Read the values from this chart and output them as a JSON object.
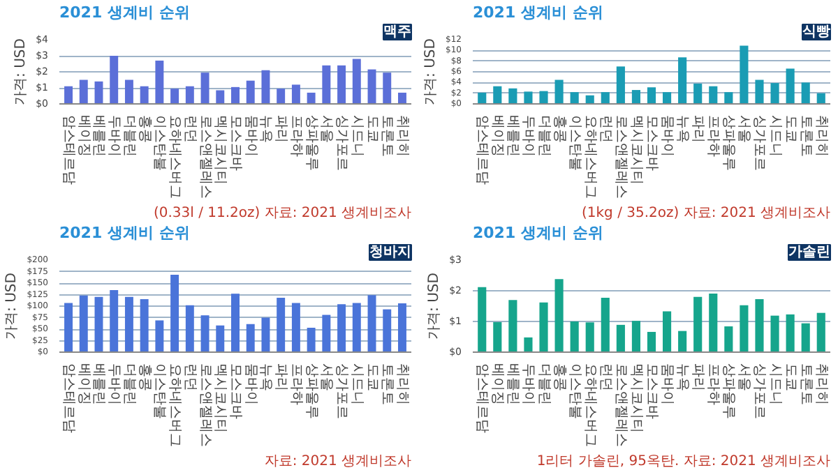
{
  "chart_data": [
    {
      "type": "bar",
      "title": "2021 생계비 순위",
      "subtitle": "맥주",
      "ylabel": "가격: USD",
      "categories": [
        "암스테르담",
        "베이징",
        "베를린",
        "두바이",
        "더블린",
        "홍콩",
        "이스탄불",
        "요하네스버그",
        "런던",
        "로스앤젤레스",
        "멕시코시티",
        "모스크바",
        "뭄바이",
        "뉴욕",
        "파리",
        "프라하",
        "상파울루",
        "서울",
        "싱가포르",
        "시드니",
        "도쿄",
        "토론토",
        "취리히"
      ],
      "values": [
        1.1,
        1.5,
        1.4,
        3.0,
        1.5,
        1.1,
        2.7,
        0.95,
        1.1,
        1.95,
        0.85,
        1.05,
        1.45,
        2.1,
        0.95,
        1.2,
        0.7,
        2.4,
        2.4,
        2.8,
        2.15,
        1.95,
        0.7
      ],
      "color": "#5b6fd8",
      "ylim": [
        0,
        4
      ],
      "yticks": [
        {
          "value": 0,
          "label": "$0"
        },
        {
          "value": 1,
          "label": "$1"
        },
        {
          "value": 2,
          "label": "$2"
        },
        {
          "value": 3,
          "label": "$3"
        },
        {
          "value": 4,
          "label": "$4"
        }
      ],
      "grid": "y",
      "annotations": [
        "(0.33l / 11.2oz) 자료: 2021 생계비조사"
      ]
    },
    {
      "type": "bar",
      "title": "2021 생계비 순위",
      "subtitle": "식빵",
      "ylabel": "가격: USD",
      "categories": [
        "암스테르담",
        "베이징",
        "베를린",
        "두바이",
        "더블린",
        "홍콩",
        "이스탄불",
        "요하네스버그",
        "런던",
        "로스앤젤레스",
        "멕시코시티",
        "모스크바",
        "뭄바이",
        "뉴욕",
        "파리",
        "프라하",
        "상파울루",
        "서울",
        "싱가포르",
        "시드니",
        "도쿄",
        "토론토",
        "취리히"
      ],
      "values": [
        2.1,
        3.3,
        2.9,
        2.3,
        2.4,
        4.5,
        2.2,
        1.6,
        2.2,
        7.0,
        2.6,
        3.1,
        2.2,
        8.7,
        3.8,
        3.3,
        2.2,
        10.9,
        4.5,
        3.9,
        6.6,
        4.0,
        2.0
      ],
      "color": "#1a9cb4",
      "ylim": [
        0,
        12
      ],
      "yticks": [
        {
          "value": 0,
          "label": "$0"
        },
        {
          "value": 2,
          "label": "$2"
        },
        {
          "value": 4,
          "label": "$4"
        },
        {
          "value": 6,
          "label": "$6"
        },
        {
          "value": 8,
          "label": "$8"
        },
        {
          "value": 10,
          "label": "$10"
        },
        {
          "value": 12,
          "label": "$12"
        }
      ],
      "grid": "y",
      "annotations": [
        "(1kg / 35.2oz) 자료: 2021 생계비조사"
      ]
    },
    {
      "type": "bar",
      "title": "2021 생계비 순위",
      "subtitle": "청바지",
      "ylabel": "가격: USD",
      "categories": [
        "암스테르담",
        "베이징",
        "베를린",
        "두바이",
        "더블린",
        "홍콩",
        "이스탄불",
        "요하네스버그",
        "런던",
        "로스앤젤레스",
        "멕시코시티",
        "모스크바",
        "뭄바이",
        "뉴욕",
        "파리",
        "프라하",
        "상파울루",
        "서울",
        "싱가포르",
        "시드니",
        "도쿄",
        "토론토",
        "취리히"
      ],
      "values": [
        107,
        123,
        120,
        135,
        120,
        115,
        69,
        168,
        102,
        80,
        58,
        127,
        61,
        75,
        118,
        107,
        53,
        81,
        104,
        107,
        124,
        93,
        106
      ],
      "color": "#4a74d9",
      "ylim": [
        0,
        200
      ],
      "yticks": [
        {
          "value": 0,
          "label": "$0"
        },
        {
          "value": 25,
          "label": "$25"
        },
        {
          "value": 50,
          "label": "$50"
        },
        {
          "value": 75,
          "label": "$75"
        },
        {
          "value": 100,
          "label": "$100"
        },
        {
          "value": 125,
          "label": "$125"
        },
        {
          "value": 150,
          "label": "$150"
        },
        {
          "value": 175,
          "label": "$175"
        },
        {
          "value": 200,
          "label": "$200"
        }
      ],
      "grid": "y",
      "annotations": [
        "자료: 2021 생계비조사"
      ]
    },
    {
      "type": "bar",
      "title": "2021 생계비 순위",
      "subtitle": "가솔린",
      "ylabel": "가격: USD",
      "categories": [
        "암스테르담",
        "베이징",
        "베를린",
        "두바이",
        "더블린",
        "홍콩",
        "이스탄불",
        "요하네스버그",
        "런던",
        "로스앤젤레스",
        "멕시코시티",
        "모스크바",
        "뭄바이",
        "뉴욕",
        "파리",
        "프라하",
        "상파울루",
        "서울",
        "싱가포르",
        "시드니",
        "도쿄",
        "토론토",
        "취리히"
      ],
      "values": [
        2.12,
        0.98,
        1.7,
        0.48,
        1.62,
        2.38,
        1.0,
        0.97,
        1.77,
        0.89,
        1.02,
        0.66,
        1.33,
        0.69,
        1.8,
        1.91,
        0.84,
        1.53,
        1.73,
        1.19,
        1.23,
        0.94,
        1.28
      ],
      "color": "#16a58c",
      "ylim": [
        0,
        3
      ],
      "yticks": [
        {
          "value": 0,
          "label": "$0"
        },
        {
          "value": 1,
          "label": "$1"
        },
        {
          "value": 2,
          "label": "$2"
        },
        {
          "value": 3,
          "label": "$3"
        }
      ],
      "grid": "y",
      "annotations": [
        "1리터 가솔린, 95옥탄. 자료: 2021 생계비조사"
      ]
    }
  ]
}
